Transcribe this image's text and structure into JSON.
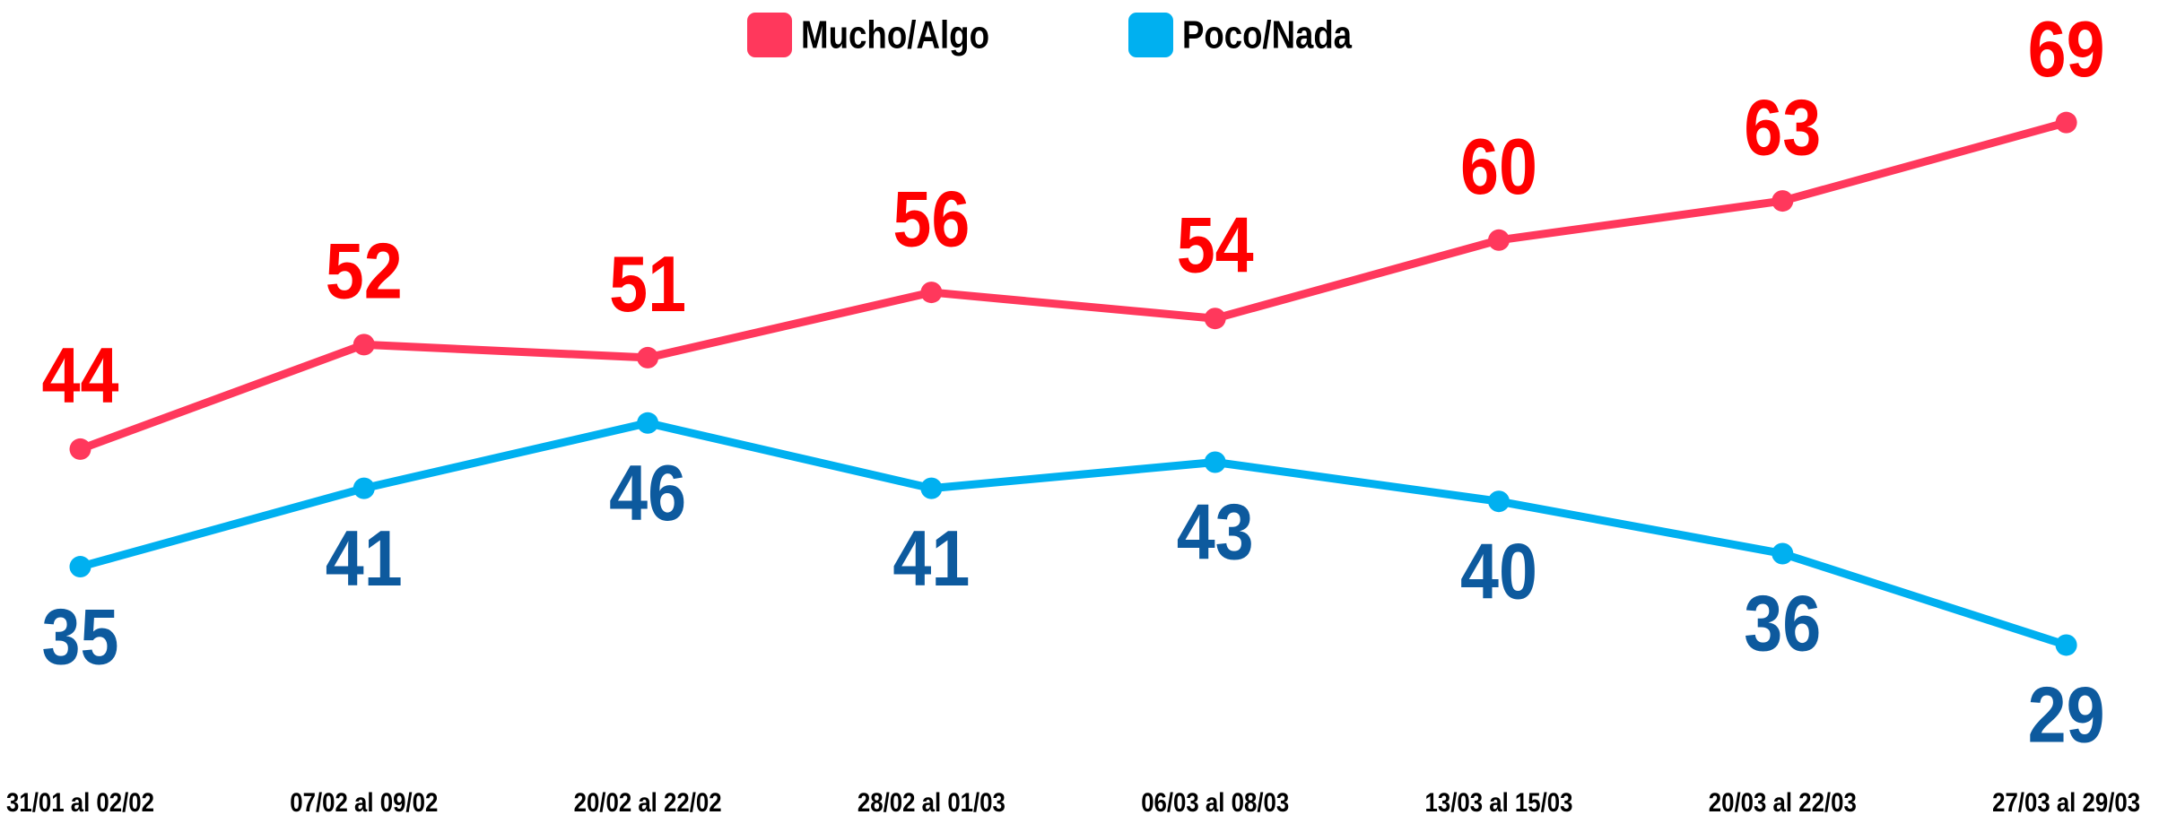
{
  "chart_data": {
    "type": "line",
    "categories": [
      "31/01 al 02/02",
      "07/02 al 09/02",
      "20/02 al 22/02",
      "28/02 al 01/03",
      "06/03 al 08/03",
      "13/03 al 15/03",
      "20/03 al 22/03",
      "27/03 al 29/03"
    ],
    "series": [
      {
        "name": "Mucho/Algo",
        "color": "#ff385c",
        "label_color": "#ff0000",
        "values": [
          44,
          52,
          51,
          56,
          54,
          60,
          63,
          69
        ]
      },
      {
        "name": "Poco/Nada",
        "color": "#00b0f0",
        "label_color": "#0d5a9e",
        "values": [
          35,
          41,
          46,
          41,
          43,
          40,
          36,
          29
        ]
      }
    ],
    "legend": "top"
  }
}
